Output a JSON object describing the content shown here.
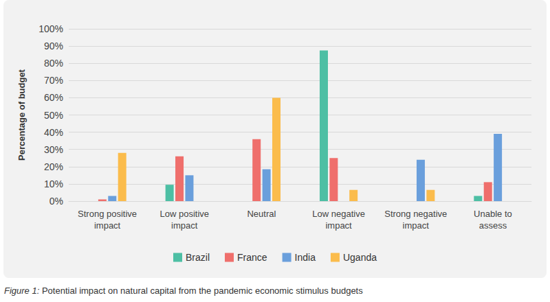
{
  "chart_data": {
    "type": "bar",
    "caption": "Figure 1: Potential impact on natural capital from the pandemic economic stimulus budgets",
    "y_label": "Percentage of budget",
    "categories": [
      "Strong positive\nimpact",
      "Low positive\nimpact",
      "Neutral",
      "Low negative\nimpact",
      "Strong negative\nimpact",
      "Unable to\nassess"
    ],
    "series": [
      {
        "name": "Brazil",
        "color": "#4dbfa4",
        "values": [
          0,
          9.5,
          0,
          87.5,
          0,
          3
        ]
      },
      {
        "name": "France",
        "color": "#ef6f6c",
        "values": [
          1,
          26,
          36,
          25,
          0,
          11
        ]
      },
      {
        "name": "India",
        "color": "#6a9fdc",
        "values": [
          3,
          15,
          18.5,
          0,
          24,
          39
        ]
      },
      {
        "name": "Uganda",
        "color": "#fbbc4c",
        "values": [
          28,
          0,
          60,
          6.5,
          6.5,
          0
        ]
      }
    ],
    "ylim": [
      0,
      100
    ],
    "yticks": [
      {
        "value": 0,
        "label": "0%"
      },
      {
        "value": 10,
        "label": "10%"
      },
      {
        "value": 20,
        "label": "20%"
      },
      {
        "value": 30,
        "label": "30%"
      },
      {
        "value": 40,
        "label": "40%"
      },
      {
        "value": 50,
        "label": "50%"
      },
      {
        "value": 60,
        "label": "60%"
      },
      {
        "value": 70,
        "label": "70%"
      },
      {
        "value": 80,
        "label": "80%"
      },
      {
        "value": 90,
        "label": "90%"
      },
      {
        "value": 100,
        "label": "100%"
      }
    ],
    "grid": true,
    "legend": "bottom"
  }
}
